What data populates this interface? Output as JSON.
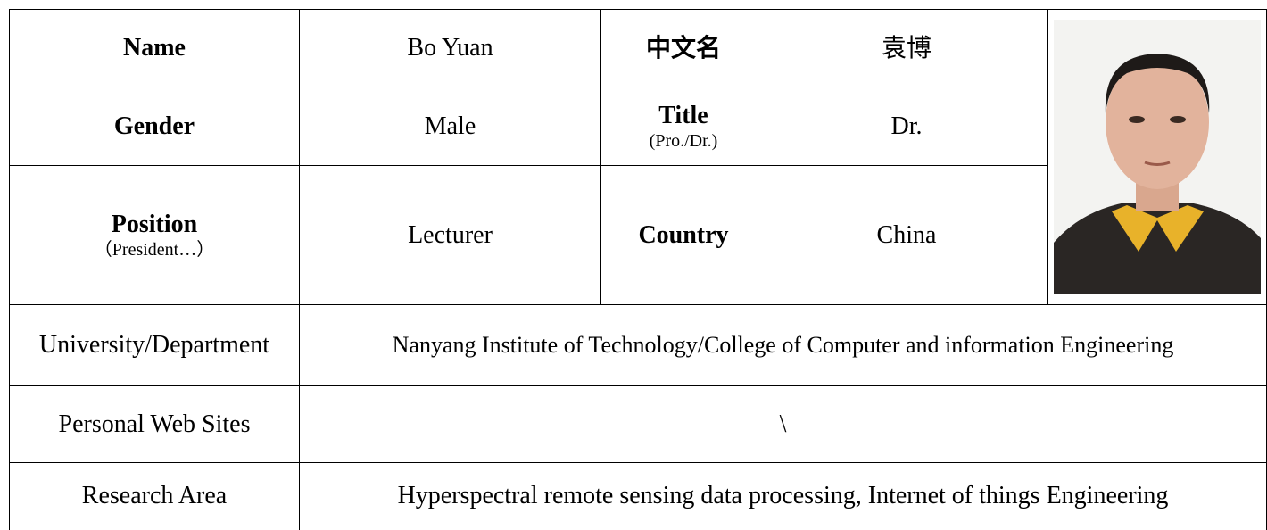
{
  "profile": {
    "name_label": "Name",
    "name": "Bo Yuan",
    "chinese_name_label": "中文名",
    "chinese_name": "袁博",
    "gender_label": "Gender",
    "gender": "Male",
    "title_label": "Title",
    "title_hint": "(Pro./Dr.)",
    "title": "Dr.",
    "position_label": "Position",
    "position_hint": "（President…）",
    "position": "Lecturer",
    "country_label": "Country",
    "country": "China"
  },
  "details": [
    {
      "label": "University/Department",
      "value": "Nanyang Institute of Technology/College of Computer and information Engineering"
    },
    {
      "label": "Personal Web Sites",
      "value": "\\"
    },
    {
      "label": "Research Area",
      "value": "Hyperspectral remote sensing data processing, Internet of things Engineering"
    }
  ]
}
